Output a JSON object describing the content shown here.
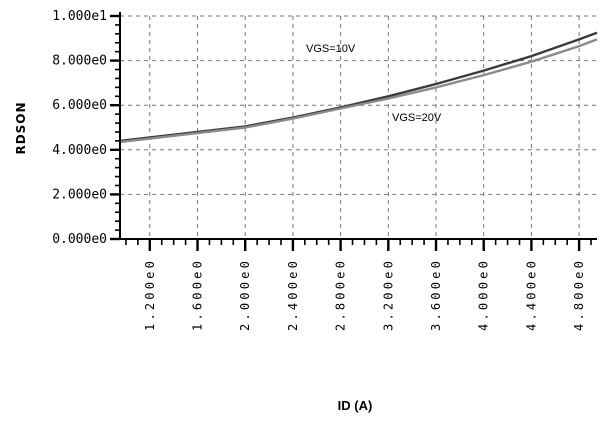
{
  "chart_data": {
    "type": "line",
    "title": "",
    "xlabel": "ID (A)",
    "ylabel": "RDSON",
    "xlim": [
      0.95,
      4.95
    ],
    "ylim": [
      0,
      10
    ],
    "x_ticks": [
      1.2,
      1.6,
      2.0,
      2.4,
      2.8,
      3.2,
      3.6,
      4.0,
      4.4,
      4.8
    ],
    "x_tick_labels": [
      "1.200e0",
      "1.600e0",
      "2.000e0",
      "2.400e0",
      "2.800e0",
      "3.200e0",
      "3.600e0",
      "4.000e0",
      "4.400e0",
      "4.800e0"
    ],
    "y_ticks": [
      0,
      2,
      4,
      6,
      8,
      10
    ],
    "y_tick_labels": [
      "0.000e0",
      "2.000e0",
      "4.000e0",
      "6.000e0",
      "8.000e0",
      "1.000e1"
    ],
    "grid": true,
    "annotations": [
      "VGS=10V",
      "VGS=20V"
    ],
    "series": [
      {
        "name": "VGS=10V",
        "color": "#3a3a3a",
        "x": [
          0.95,
          1.2,
          1.6,
          2.0,
          2.4,
          2.8,
          3.2,
          3.6,
          4.0,
          4.4,
          4.8,
          4.95
        ],
        "y": [
          4.4,
          4.55,
          4.8,
          5.05,
          5.45,
          5.9,
          6.4,
          6.95,
          7.55,
          8.2,
          8.95,
          9.25
        ]
      },
      {
        "name": "VGS=20V",
        "color": "#8a8a8a",
        "x": [
          0.95,
          1.2,
          1.6,
          2.0,
          2.4,
          2.8,
          3.2,
          3.6,
          4.0,
          4.4,
          4.8,
          4.95
        ],
        "y": [
          4.35,
          4.5,
          4.75,
          5.0,
          5.4,
          5.85,
          6.3,
          6.8,
          7.35,
          7.95,
          8.65,
          8.95
        ]
      }
    ]
  }
}
